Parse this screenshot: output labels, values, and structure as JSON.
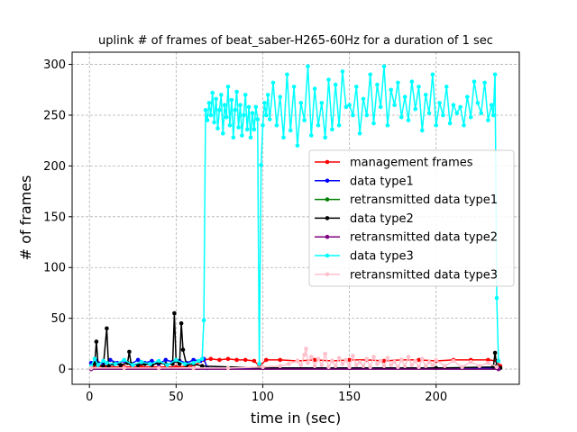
{
  "chart_data": {
    "type": "line",
    "title": "uplink # of frames of beat_saber-H265-60Hz for a duration of 1 sec",
    "xlabel": "time in (sec)",
    "ylabel": "# of frames",
    "xlim": [
      -10,
      248
    ],
    "ylim": [
      -15,
      312
    ],
    "xticks": [
      0,
      50,
      100,
      150,
      200
    ],
    "yticks": [
      0,
      50,
      100,
      150,
      200,
      250,
      300
    ],
    "grid": true,
    "legend_position": "center-right",
    "series": [
      {
        "name": "management frames",
        "color": "#ff0000",
        "x": [
          2,
          10,
          20,
          30,
          40,
          50,
          60,
          66,
          70,
          75,
          80,
          85,
          90,
          95,
          98,
          102,
          110,
          120,
          130,
          140,
          150,
          160,
          170,
          180,
          190,
          200,
          210,
          220,
          230,
          235,
          237
        ],
        "y": [
          3,
          2,
          2,
          2,
          2,
          2,
          3,
          9,
          10,
          9,
          10,
          9,
          9,
          8,
          3,
          9,
          9,
          8,
          9,
          8,
          9,
          9,
          8,
          9,
          9,
          8,
          9,
          9,
          9,
          8,
          3
        ]
      },
      {
        "name": "data type1",
        "color": "#0000ff",
        "x": [
          1,
          4,
          8,
          12,
          16,
          20,
          24,
          28,
          32,
          36,
          40,
          44,
          48,
          52,
          56,
          60,
          64,
          66,
          68,
          236
        ],
        "y": [
          6,
          8,
          5,
          9,
          6,
          8,
          5,
          9,
          6,
          8,
          5,
          9,
          7,
          8,
          6,
          9,
          8,
          10,
          1,
          1
        ]
      },
      {
        "name": "retransmitted data type1",
        "color": "#008000",
        "x": [
          1,
          236
        ],
        "y": [
          0,
          0
        ]
      },
      {
        "name": "data type2",
        "color": "#000000",
        "x": [
          3,
          4,
          5,
          8,
          10,
          11,
          14,
          18,
          22,
          23,
          24,
          28,
          32,
          36,
          40,
          44,
          48,
          49,
          50,
          52,
          53,
          54,
          56,
          60,
          65,
          100,
          150,
          200,
          233,
          234,
          235,
          237
        ],
        "y": [
          5,
          27,
          4,
          3,
          40,
          3,
          5,
          4,
          6,
          17,
          5,
          4,
          5,
          4,
          6,
          5,
          5,
          55,
          8,
          5,
          45,
          19,
          4,
          5,
          3,
          1,
          1,
          1,
          2,
          16,
          3,
          1
        ]
      },
      {
        "name": "retransmitted data type2",
        "color": "#800080",
        "x": [
          1,
          236
        ],
        "y": [
          0,
          0
        ]
      },
      {
        "name": "data type3",
        "color": "#00ffff",
        "x": [
          1,
          3,
          5,
          8,
          10,
          15,
          20,
          25,
          30,
          35,
          40,
          45,
          50,
          55,
          60,
          63,
          65,
          66,
          67,
          68,
          69,
          70,
          71,
          72,
          73,
          74,
          75,
          76,
          77,
          78,
          79,
          80,
          81,
          82,
          83,
          84,
          85,
          86,
          87,
          88,
          89,
          90,
          91,
          92,
          93,
          94,
          95,
          96,
          97,
          98,
          99,
          100,
          101,
          102,
          103,
          104,
          106,
          108,
          110,
          112,
          114,
          116,
          118,
          120,
          122,
          124,
          126,
          128,
          130,
          132,
          134,
          136,
          138,
          140,
          142,
          144,
          146,
          148,
          150,
          152,
          154,
          156,
          158,
          160,
          162,
          164,
          166,
          168,
          170,
          172,
          174,
          176,
          178,
          180,
          182,
          184,
          186,
          188,
          190,
          192,
          194,
          196,
          198,
          200,
          202,
          204,
          206,
          208,
          210,
          212,
          214,
          216,
          218,
          220,
          222,
          224,
          226,
          228,
          230,
          232,
          233,
          234,
          235,
          236
        ],
        "y": [
          3,
          10,
          4,
          8,
          6,
          5,
          9,
          4,
          7,
          5,
          8,
          4,
          9,
          5,
          6,
          8,
          10,
          48,
          255,
          245,
          262,
          250,
          272,
          243,
          266,
          237,
          255,
          270,
          232,
          260,
          248,
          278,
          240,
          265,
          228,
          255,
          273,
          238,
          260,
          230,
          250,
          270,
          236,
          258,
          228,
          252,
          236,
          258,
          246,
          5,
          201,
          240,
          262,
          250,
          270,
          246,
          282,
          240,
          268,
          228,
          290,
          235,
          278,
          220,
          262,
          245,
          298,
          230,
          276,
          240,
          262,
          228,
          285,
          236,
          280,
          240,
          293,
          258,
          260,
          250,
          278,
          232,
          266,
          250,
          290,
          242,
          280,
          258,
          298,
          240,
          275,
          260,
          282,
          248,
          268,
          245,
          283,
          256,
          278,
          235,
          270,
          252,
          290,
          240,
          262,
          250,
          278,
          242,
          260,
          252,
          258,
          240,
          268,
          248,
          283,
          262,
          252,
          282,
          245,
          260,
          250,
          290,
          70,
          8
        ]
      },
      {
        "name": "retransmitted data type3",
        "color": "#ffc0cb",
        "x": [
          1,
          20,
          40,
          60,
          80,
          100,
          110,
          115,
          120,
          122,
          124,
          125,
          126,
          128,
          130,
          132,
          134,
          136,
          138,
          140,
          142,
          144,
          146,
          148,
          150,
          152,
          154,
          156,
          158,
          160,
          162,
          164,
          166,
          168,
          170,
          172,
          174,
          176,
          178,
          180,
          182,
          184,
          186,
          188,
          190,
          192,
          194,
          196,
          198,
          200,
          205,
          210,
          215,
          220,
          225,
          230,
          235
        ],
        "y": [
          1,
          1,
          1,
          1,
          1,
          2,
          3,
          5,
          8,
          4,
          14,
          20,
          6,
          12,
          3,
          10,
          4,
          15,
          2,
          8,
          3,
          11,
          5,
          9,
          2,
          13,
          4,
          7,
          3,
          10,
          2,
          12,
          5,
          8,
          3,
          11,
          4,
          7,
          2,
          9,
          3,
          12,
          4,
          8,
          2,
          10,
          3,
          7,
          4,
          9,
          3,
          8,
          2,
          7,
          3,
          6,
          2
        ]
      }
    ]
  }
}
